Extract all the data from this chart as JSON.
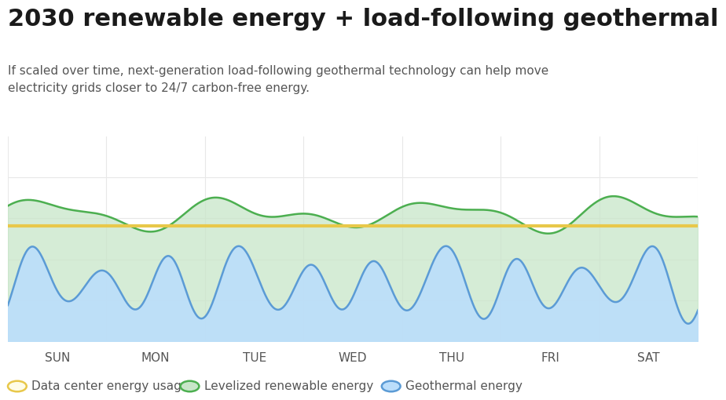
{
  "title": "2030 renewable energy + load-following geothermal",
  "subtitle": "If scaled over time, next-generation load-following geothermal technology can help move\nelectricity grids closer to 24/7 carbon-free energy.",
  "days": [
    "SUN",
    "MON",
    "TUE",
    "WED",
    "THU",
    "FRI",
    "SAT"
  ],
  "background_color": "#ffffff",
  "plot_bg_color": "#ffffff",
  "green_fill_color": "#c8e6c9",
  "green_line_color": "#4caf50",
  "blue_fill_color": "#bbdefb",
  "blue_line_color": "#5b9bd5",
  "yellow_line_color": "#e8c84a",
  "grid_color": "#e8e8e8",
  "title_fontsize": 22,
  "subtitle_fontsize": 11,
  "tick_fontsize": 11,
  "legend_fontsize": 11,
  "title_color": "#1a1a1a",
  "subtitle_color": "#555555",
  "tick_color": "#555555",
  "legend_labels": [
    "Data center energy usage",
    "Levelized renewable energy",
    "Geothermal energy"
  ]
}
